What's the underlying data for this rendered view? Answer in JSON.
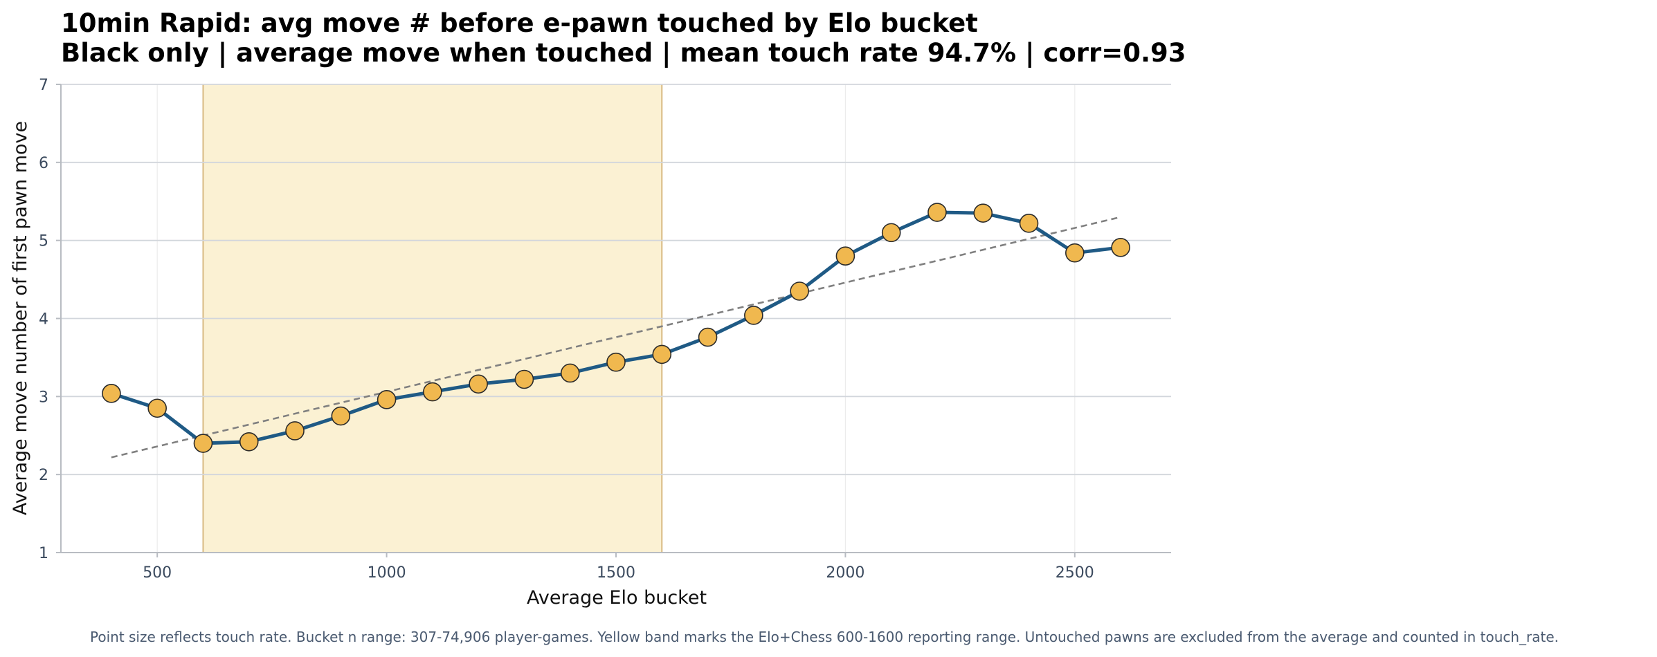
{
  "chart_data": {
    "type": "line",
    "title": "10min Rapid: avg move # before e-pawn touched by Elo bucket",
    "subtitle": "Black only | average move when touched | mean touch rate 94.7% | corr=0.93",
    "xlabel": "Average Elo bucket",
    "ylabel": "Average move number of first pawn move",
    "xlim": [
      290,
      2710
    ],
    "ylim": [
      1,
      7
    ],
    "x_ticks": [
      500,
      1000,
      1500,
      2000,
      2500
    ],
    "y_ticks": [
      1,
      2,
      3,
      4,
      5,
      6,
      7
    ],
    "grid": true,
    "highlight_band": {
      "x_start": 600,
      "x_end": 1600
    },
    "series": [
      {
        "x": [
          400,
          500,
          600,
          700,
          800,
          900,
          1000,
          1100,
          1200,
          1300,
          1400,
          1500,
          1600,
          1700,
          1800,
          1900,
          2000,
          2100,
          2200,
          2300,
          2400,
          2500,
          2600
        ],
        "values": [
          3.04,
          2.85,
          2.4,
          2.42,
          2.56,
          2.75,
          2.96,
          3.06,
          3.16,
          3.22,
          3.3,
          3.44,
          3.54,
          3.76,
          4.04,
          4.35,
          4.8,
          5.1,
          5.36,
          5.35,
          5.22,
          4.84,
          4.91
        ]
      }
    ],
    "trend_line": {
      "x": [
        400,
        2600
      ],
      "y": [
        2.22,
        5.3
      ]
    },
    "footnote": "Point size reflects touch rate. Bucket n range: 307-74,906 player-games. Yellow band marks the Elo+Chess 600-1600 reporting range. Untouched pawns are excluded from the average and counted in touch_rate."
  },
  "colors": {
    "line": "#1f5a85",
    "marker_fill": "#f0b84f",
    "marker_edge": "#2b2b2b",
    "band_fill": "#fbf1d3",
    "band_edge": "#d8b982",
    "trend": "#808080",
    "hgrid": "#d2d6dc",
    "vgrid": "#ececec",
    "axis": "#b8bcc2"
  }
}
